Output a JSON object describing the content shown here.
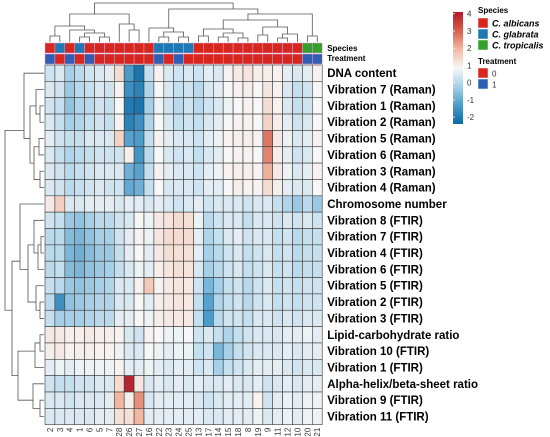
{
  "chart_data": {
    "type": "heatmap",
    "rows": [
      "DNA content",
      "Vibration 7 (Raman)",
      "Vibration 1 (Raman)",
      "Vibration 2 (Raman)",
      "Vibration 5 (Raman)",
      "Vibration 6 (Raman)",
      "Vibration 3 (Raman)",
      "Vibration 4 (Raman)",
      "Chromosome number",
      "Vibration 8 (FTIR)",
      "Vibration 7 (FTIR)",
      "Vibration 4 (FTIR)",
      "Vibration 6 (FTIR)",
      "Vibration 5 (FTIR)",
      "Vibration 2 (FTIR)",
      "Vibration 3 (FTIR)",
      "Lipid-carbohydrate ratio",
      "Vibration 10 (FTIR)",
      "Vibration 1 (FTIR)",
      "Alpha-helix/beta-sheet ratio",
      "Vibration 9 (FTIR)",
      "Vibration 11 (FTIR)"
    ],
    "columns": [
      "2",
      "3",
      "4",
      "1",
      "6",
      "5",
      "7",
      "28",
      "26",
      "27",
      "16",
      "22",
      "23",
      "24",
      "25",
      "13",
      "17",
      "14",
      "15",
      "18",
      "8",
      "19",
      "9",
      "11",
      "12",
      "10",
      "20",
      "21"
    ],
    "values": [
      [
        -0.4,
        -0.3,
        -0.8,
        -0.6,
        -0.4,
        -0.3,
        -0.2,
        0.6,
        -1.6,
        -2.2,
        -0.5,
        0.1,
        -0.3,
        -0.4,
        -0.3,
        -0.4,
        -0.2,
        -0.3,
        0.1,
        0.3,
        0.4,
        0.2,
        0.2,
        0.1,
        -0.2,
        -0.3,
        -0.2,
        0.1
      ],
      [
        -0.3,
        -0.4,
        -0.9,
        -0.6,
        -0.5,
        -0.3,
        -0.4,
        0.1,
        -1.8,
        -2.0,
        -0.7,
        0.0,
        -0.3,
        -0.5,
        -0.4,
        -0.6,
        -0.3,
        -0.2,
        0.0,
        0.1,
        0.2,
        0.0,
        0.4,
        0.1,
        -0.3,
        -0.5,
        -0.4,
        0.0
      ],
      [
        -0.4,
        -0.5,
        -1.0,
        -0.7,
        -0.6,
        -0.4,
        -0.5,
        0.0,
        -2.1,
        -2.2,
        -0.8,
        -0.1,
        -0.4,
        -0.6,
        -0.4,
        -0.6,
        -0.4,
        -0.3,
        -0.1,
        0.0,
        0.1,
        0.0,
        0.6,
        0.1,
        -0.3,
        -0.5,
        -0.4,
        0.0
      ],
      [
        -0.3,
        -0.5,
        -0.8,
        -0.7,
        -0.5,
        -0.4,
        -0.5,
        0.1,
        -2.0,
        -1.8,
        -0.7,
        0.0,
        -0.3,
        -0.5,
        -0.4,
        -0.5,
        -0.3,
        -0.2,
        0.0,
        0.1,
        0.1,
        0.0,
        0.8,
        0.2,
        -0.2,
        -0.4,
        -0.3,
        0.0
      ],
      [
        -0.2,
        -0.4,
        -0.5,
        -0.5,
        -0.3,
        -0.3,
        -0.3,
        0.8,
        -1.5,
        -1.6,
        -0.5,
        0.1,
        -0.2,
        -0.3,
        -0.3,
        -0.4,
        -0.2,
        -0.1,
        0.1,
        0.2,
        0.2,
        0.1,
        2.4,
        0.3,
        -0.1,
        -0.3,
        -0.2,
        0.1
      ],
      [
        -0.3,
        -0.5,
        -0.7,
        -0.6,
        -0.5,
        -0.4,
        -0.4,
        -0.4,
        0.2,
        -1.7,
        -0.6,
        0.0,
        -0.3,
        -0.4,
        -0.3,
        -0.5,
        -0.3,
        -0.2,
        0.0,
        0.1,
        0.1,
        0.0,
        2.2,
        0.2,
        -0.2,
        -0.4,
        -0.3,
        0.0
      ],
      [
        -0.3,
        -0.4,
        -0.6,
        -0.5,
        -0.4,
        -0.3,
        -0.3,
        -0.3,
        -1.3,
        -1.5,
        -0.5,
        0.1,
        -0.2,
        -0.3,
        -0.3,
        -0.4,
        -0.2,
        -0.1,
        0.1,
        0.2,
        0.2,
        0.1,
        1.5,
        0.3,
        -0.1,
        -0.3,
        -0.2,
        0.1
      ],
      [
        -0.3,
        -0.4,
        -0.6,
        -0.5,
        -0.4,
        -0.3,
        -0.4,
        -0.4,
        -1.4,
        -1.3,
        -0.5,
        0.0,
        -0.3,
        -0.3,
        -0.3,
        -0.4,
        -0.2,
        -0.2,
        0.0,
        0.2,
        0.1,
        0.1,
        0.6,
        0.2,
        -0.2,
        -0.3,
        -0.3,
        0.0
      ],
      [
        0.3,
        0.9,
        -0.3,
        -0.3,
        -0.2,
        -0.2,
        -0.2,
        -0.3,
        -0.2,
        -0.2,
        -0.3,
        -0.2,
        -0.3,
        -0.4,
        -0.3,
        -0.2,
        -0.4,
        -0.3,
        -0.3,
        -0.3,
        -0.4,
        -0.3,
        -0.3,
        -0.5,
        -0.7,
        -0.9,
        -0.6,
        -0.9
      ],
      [
        -0.4,
        -0.5,
        -0.9,
        -1.0,
        -0.8,
        -0.6,
        -0.6,
        -0.4,
        -0.3,
        0.0,
        -0.1,
        0.3,
        0.4,
        0.6,
        0.5,
        -0.1,
        -0.6,
        -0.4,
        -0.3,
        -0.3,
        -0.5,
        -0.3,
        -0.3,
        -0.4,
        -0.3,
        -0.4,
        -0.3,
        -0.4
      ],
      [
        -0.6,
        -0.6,
        -1.1,
        -1.2,
        -1.0,
        -0.8,
        -0.8,
        -0.4,
        -0.2,
        0.1,
        -0.1,
        0.4,
        0.6,
        0.6,
        0.6,
        -0.2,
        -0.7,
        -0.5,
        -0.3,
        -0.2,
        -0.4,
        -0.3,
        -0.3,
        -0.5,
        -0.4,
        -0.6,
        -0.5,
        -0.5
      ],
      [
        -0.6,
        -0.6,
        -1.2,
        -1.3,
        -1.1,
        -0.9,
        -0.9,
        -0.5,
        -0.2,
        0.0,
        -0.2,
        0.3,
        0.5,
        0.5,
        0.5,
        -0.2,
        -0.8,
        -0.6,
        -0.4,
        -0.3,
        -0.5,
        -0.4,
        -0.3,
        -0.5,
        -0.4,
        -0.6,
        -0.5,
        -0.5
      ],
      [
        -0.6,
        -0.5,
        -1.1,
        -1.2,
        -1.0,
        -0.9,
        -0.8,
        -0.5,
        -0.3,
        -0.1,
        -0.2,
        0.2,
        0.4,
        0.5,
        0.4,
        -0.3,
        -0.8,
        -0.6,
        -0.4,
        -0.3,
        -0.5,
        -0.4,
        -0.3,
        -0.5,
        -0.4,
        -0.6,
        -0.5,
        -0.5
      ],
      [
        -0.5,
        -0.6,
        -0.9,
        -1.0,
        -0.9,
        -0.8,
        -0.7,
        -0.3,
        -0.3,
        0.1,
        1.0,
        0.1,
        0.3,
        0.4,
        0.3,
        -0.4,
        -1.2,
        -0.8,
        -0.5,
        -0.4,
        -0.6,
        -0.4,
        -0.3,
        -0.5,
        -0.4,
        -0.5,
        -0.4,
        -0.4
      ],
      [
        -0.6,
        -1.8,
        -1.0,
        -0.9,
        -0.8,
        -0.7,
        -0.7,
        -0.3,
        -0.3,
        0.0,
        -0.2,
        0.2,
        0.3,
        0.4,
        0.3,
        -0.5,
        -1.5,
        -0.7,
        -0.5,
        -0.4,
        -0.6,
        -0.4,
        -0.3,
        -0.5,
        -0.4,
        -0.5,
        -0.4,
        -0.4
      ],
      [
        -0.5,
        -0.8,
        -0.8,
        -0.8,
        -0.7,
        -0.6,
        -0.6,
        -0.2,
        -0.2,
        0.0,
        -0.1,
        0.2,
        0.3,
        0.3,
        0.3,
        -0.5,
        -1.6,
        -0.6,
        -0.4,
        -0.4,
        -0.5,
        -0.3,
        -0.3,
        -0.4,
        -0.3,
        -0.4,
        -0.3,
        -0.3
      ],
      [
        0.3,
        0.3,
        0.2,
        0.2,
        0.3,
        0.2,
        0.2,
        0.1,
        -0.3,
        -0.4,
        0.1,
        0.0,
        -0.1,
        -0.1,
        0.0,
        -0.4,
        -0.3,
        -0.5,
        -0.7,
        -0.5,
        -0.4,
        -0.3,
        -0.3,
        -0.3,
        -0.2,
        -0.2,
        -0.1,
        -0.2
      ],
      [
        0.2,
        0.3,
        0.1,
        0.2,
        0.2,
        0.1,
        0.1,
        -0.1,
        -0.3,
        -0.3,
        0.0,
        -0.1,
        -0.2,
        -0.1,
        -0.1,
        -0.5,
        -0.4,
        -1.2,
        -0.8,
        -0.5,
        -0.4,
        -0.3,
        -0.3,
        -0.3,
        -0.2,
        -0.3,
        -0.2,
        -0.2
      ],
      [
        -0.2,
        -0.1,
        -0.2,
        -0.1,
        -0.1,
        -0.1,
        -0.1,
        0.1,
        -0.2,
        -0.2,
        -0.1,
        -0.2,
        -0.3,
        -0.2,
        -0.2,
        -0.4,
        -0.3,
        -0.8,
        -0.5,
        -0.4,
        -0.3,
        -0.2,
        -0.2,
        -0.2,
        -0.3,
        -0.4,
        -0.3,
        -0.3
      ],
      [
        -0.4,
        -0.5,
        -0.5,
        -0.4,
        -0.4,
        -0.3,
        -0.3,
        0.6,
        3.9,
        0.4,
        -0.3,
        -0.2,
        -0.3,
        -0.2,
        -0.3,
        -0.2,
        -0.3,
        -0.3,
        -0.2,
        -0.3,
        -0.3,
        -0.2,
        -0.4,
        -0.3,
        -0.2,
        -0.3,
        -0.2,
        -0.2
      ],
      [
        -0.3,
        -0.3,
        -0.4,
        -0.3,
        -0.3,
        -0.3,
        -0.2,
        1.4,
        0.2,
        2.0,
        -0.3,
        -0.2,
        -0.2,
        -0.2,
        -0.2,
        -0.3,
        -0.4,
        -0.3,
        -0.2,
        -0.2,
        -0.2,
        0.1,
        -0.4,
        -0.2,
        -0.1,
        -0.2,
        -0.1,
        -0.1
      ],
      [
        -0.3,
        -0.3,
        -0.3,
        -0.3,
        -0.3,
        -0.2,
        -0.2,
        0.5,
        0.5,
        1.4,
        -0.2,
        -0.2,
        -0.2,
        -0.2,
        -0.2,
        -0.2,
        -0.3,
        -0.3,
        -0.2,
        -0.2,
        -0.2,
        -0.1,
        -0.3,
        -0.2,
        -0.1,
        -0.2,
        -0.1,
        -0.1
      ]
    ],
    "annotations": {
      "Species": [
        "C. albicans",
        "C. glabrata",
        "C. albicans",
        "C. glabrata",
        "C. albicans",
        "C. albicans",
        "C. albicans",
        "C. albicans",
        "C. albicans",
        "C. albicans",
        "C. albicans",
        "C. glabrata",
        "C. glabrata",
        "C. glabrata",
        "C. glabrata",
        "C. albicans",
        "C. albicans",
        "C. albicans",
        "C. albicans",
        "C. albicans",
        "C. albicans",
        "C. albicans",
        "C. albicans",
        "C. albicans",
        "C. albicans",
        "C. albicans",
        "C. tropicalis",
        "C. tropicalis"
      ],
      "Treatment": [
        "1",
        "0",
        "1",
        "0",
        "1",
        "0",
        "0",
        "0",
        "0",
        "0",
        "0",
        "1",
        "0",
        "1",
        "0",
        "0",
        "0",
        "0",
        "0",
        "0",
        "0",
        "0",
        "0",
        "0",
        "0",
        "0",
        "1",
        "1"
      ]
    },
    "color_scale": {
      "ticks": [
        4,
        3,
        2,
        1,
        0,
        -1,
        -2
      ],
      "min": -2.4,
      "max": 4.1,
      "colors": [
        "#0a6aa4",
        "#4d9bc9",
        "#a6d0e8",
        "#f7f7f7",
        "#f2b9a3",
        "#d6604d",
        "#b2182b"
      ]
    },
    "legend": {
      "species_title": "Species",
      "species": [
        {
          "label": "C. albicans",
          "color": "#d7261e"
        },
        {
          "label": "C. glabrata",
          "color": "#1f78b4"
        },
        {
          "label": "C. tropicalis",
          "color": "#33a02c"
        }
      ],
      "treatment_title": "Treatment",
      "treatment": [
        {
          "label": "0",
          "color": "#d7261e"
        },
        {
          "label": "1",
          "color": "#2e5fb5"
        }
      ]
    },
    "annotation_labels": {
      "species": "Species",
      "treatment": "Treatment"
    }
  }
}
